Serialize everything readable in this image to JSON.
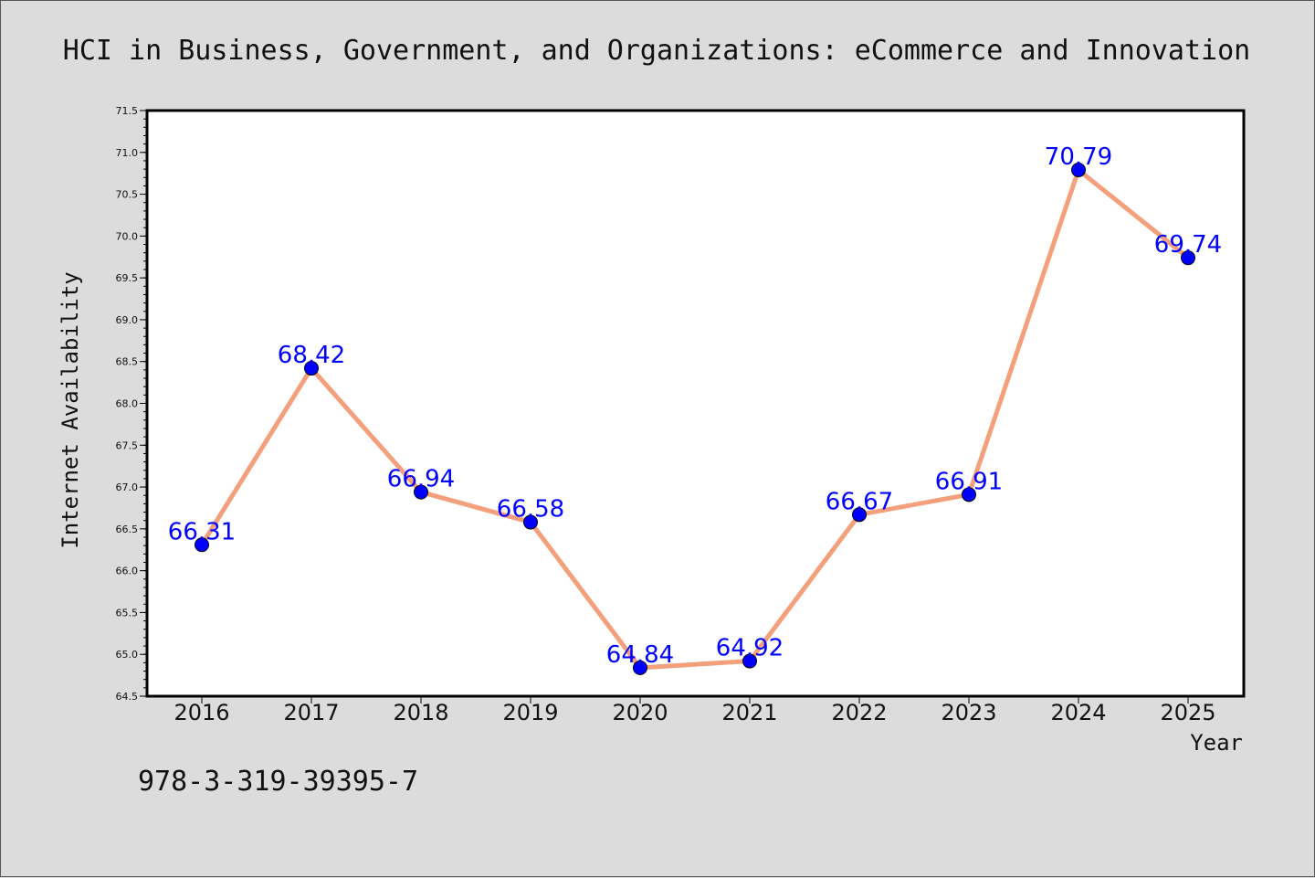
{
  "figure": {
    "title": "HCI in Business, Government, and Organizations: eCommerce and Innovation",
    "footer_text": "978-3-319-39395-7"
  },
  "chart_data": {
    "type": "line",
    "title": "HCI in Business, Government, and Organizations: eCommerce and Innovation",
    "xlabel": "Year",
    "ylabel": "Internet Availability",
    "categories": [
      "2016",
      "2017",
      "2018",
      "2019",
      "2020",
      "2021",
      "2022",
      "2023",
      "2024",
      "2025"
    ],
    "series": [
      {
        "values": [
          66.31,
          68.42,
          66.94,
          66.58,
          64.84,
          64.92,
          66.67,
          66.91,
          70.79,
          69.74
        ],
        "data_labels": [
          "66.31",
          "68.42",
          "66.94",
          "66.58",
          "64.84",
          "64.92",
          "66.67",
          "66.91",
          "70.79",
          "69.74"
        ],
        "line_color": "#f4a07c",
        "marker_color": "#0000ff"
      }
    ],
    "ylim": [
      64.5,
      71.5
    ],
    "yticks": [
      "64.5",
      "65.0",
      "65.5",
      "66.0",
      "66.5",
      "67.0",
      "67.5",
      "68.0",
      "68.5",
      "69.0",
      "69.5",
      "70.0",
      "70.5",
      "71.0",
      "71.5"
    ],
    "grid": false,
    "legend": "none",
    "background": "#dcdcdc",
    "plot_background": "#ffffff"
  }
}
